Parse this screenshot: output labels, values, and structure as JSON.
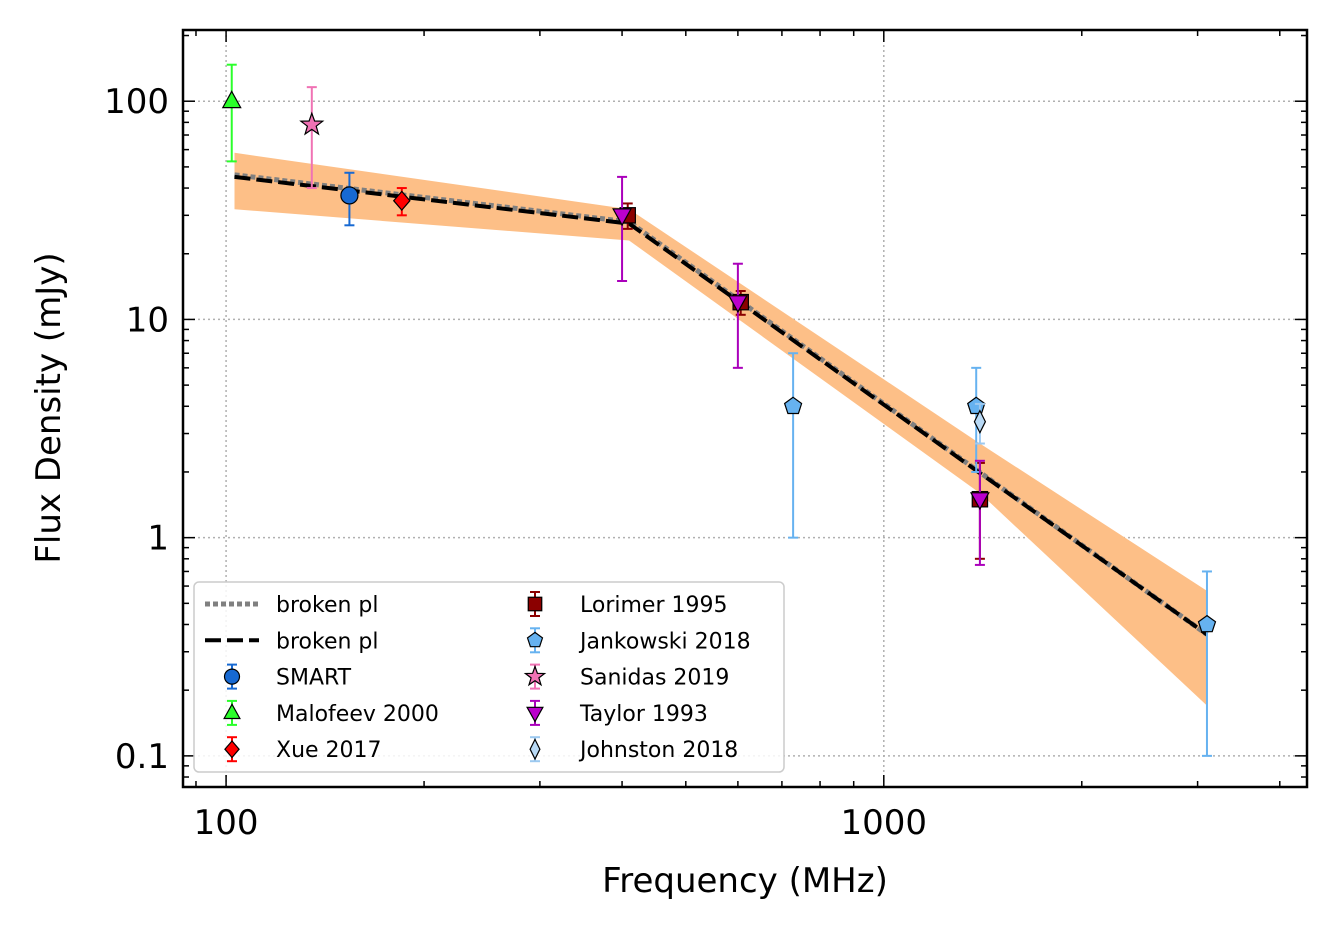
{
  "chart_data": {
    "type": "scatter",
    "title": "",
    "xlabel": "Frequency (MHz)",
    "ylabel": "Flux Density (mJy)",
    "xscale": "log",
    "yscale": "log",
    "xlim": [
      86,
      4400
    ],
    "ylim": [
      0.072,
      212
    ],
    "xticks": [
      {
        "v": 100,
        "label": "100"
      },
      {
        "v": 1000,
        "label": "1000"
      }
    ],
    "yticks": [
      {
        "v": 0.1,
        "label": "0.1"
      },
      {
        "v": 1,
        "label": "1"
      },
      {
        "v": 10,
        "label": "10"
      },
      {
        "v": 100,
        "label": "100"
      }
    ],
    "grid": true,
    "legend_position": "lower-left",
    "band": {
      "color": "#fdbf87",
      "upper": [
        [
          103,
          58
        ],
        [
          410,
          32
        ],
        [
          1400,
          2.7
        ],
        [
          3100,
          0.57
        ]
      ],
      "lower": [
        [
          103,
          32
        ],
        [
          410,
          23
        ],
        [
          1400,
          1.6
        ],
        [
          3100,
          0.17
        ]
      ]
    },
    "fit_lines": [
      {
        "label": "broken pl",
        "style": "dotted",
        "color": "#808080",
        "points": [
          [
            103,
            46
          ],
          [
            410,
            28
          ],
          [
            3100,
            0.36
          ]
        ]
      },
      {
        "label": "broken pl",
        "style": "dashed",
        "color": "#000000",
        "points": [
          [
            103,
            45
          ],
          [
            410,
            27.5
          ],
          [
            3100,
            0.36
          ]
        ]
      }
    ],
    "series": [
      {
        "name": "SMART",
        "marker": "circle",
        "color": "#1769d2",
        "err_color": "#1769d2",
        "points": [
          {
            "x": 154,
            "y": 37,
            "lo": 27,
            "hi": 47
          }
        ]
      },
      {
        "name": "Malofeev 2000",
        "marker": "triangle-up",
        "color": "#2bff2b",
        "err_color": "#2bff2b",
        "points": [
          {
            "x": 102,
            "y": 100,
            "lo": 53,
            "hi": 147
          }
        ]
      },
      {
        "name": "Xue 2017",
        "marker": "diamond",
        "color": "#ff0000",
        "err_color": "#ff0000",
        "points": [
          {
            "x": 185,
            "y": 35,
            "lo": 30,
            "hi": 40
          }
        ]
      },
      {
        "name": "Lorimer 1995",
        "marker": "square",
        "color": "#8b0000",
        "err_color": "#8b0000",
        "points": [
          {
            "x": 408,
            "y": 30,
            "lo": 26,
            "hi": 34
          },
          {
            "x": 606,
            "y": 12,
            "lo": 10.5,
            "hi": 13.5
          },
          {
            "x": 1400,
            "y": 1.5,
            "lo": 0.8,
            "hi": 2.2
          }
        ]
      },
      {
        "name": "Jankowski 2018",
        "marker": "pentagon",
        "color": "#66b2f0",
        "err_color": "#66b2f0",
        "points": [
          {
            "x": 728,
            "y": 4,
            "lo": 1,
            "hi": 7
          },
          {
            "x": 1382,
            "y": 4,
            "lo": 2,
            "hi": 6
          },
          {
            "x": 3100,
            "y": 0.4,
            "lo": 0.1,
            "hi": 0.7
          }
        ]
      },
      {
        "name": "Sanidas 2019",
        "marker": "star",
        "color": "#f072b4",
        "err_color": "#f072b4",
        "points": [
          {
            "x": 135,
            "y": 78,
            "lo": 40,
            "hi": 116
          }
        ]
      },
      {
        "name": "Taylor 1993",
        "marker": "triangle-down",
        "color": "#bb00cc",
        "err_color": "#aa00bb",
        "points": [
          {
            "x": 400,
            "y": 30,
            "lo": 15,
            "hi": 45
          },
          {
            "x": 600,
            "y": 12,
            "lo": 6,
            "hi": 18
          },
          {
            "x": 1400,
            "y": 1.5,
            "lo": 0.75,
            "hi": 2.25
          }
        ]
      },
      {
        "name": "Johnston 2018",
        "marker": "thin-diamond",
        "color": "#b8d9f5",
        "err_color": "#9cc9f0",
        "points": [
          {
            "x": 1400,
            "y": 3.4,
            "lo": 2.7,
            "hi": 4.1
          }
        ]
      }
    ]
  }
}
